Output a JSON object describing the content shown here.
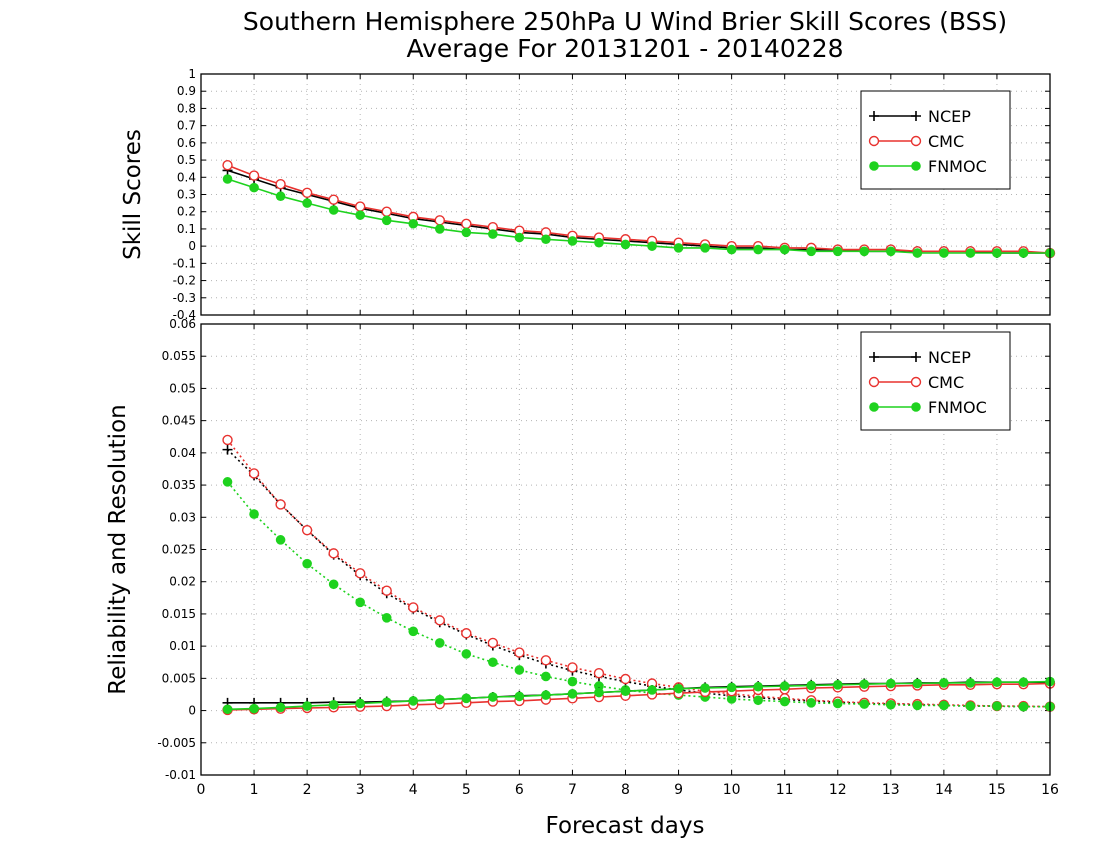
{
  "title": "Southern Hemisphere 250hPa U Wind Brier Skill Scores (BSS)",
  "subtitle": "Average For 20131201 - 20140228",
  "xlabel": "Forecast days",
  "xticks": [
    "0",
    "1",
    "2",
    "3",
    "4",
    "5",
    "6",
    "7",
    "8",
    "9",
    "10",
    "11",
    "12",
    "13",
    "14",
    "15",
    "16"
  ],
  "colors": {
    "NCEP": "#000000",
    "CMC": "#e8322f",
    "FNMOC": "#1ed21e",
    "grid": "#b4b4b4"
  },
  "chart_data": [
    {
      "type": "line",
      "ylabel": "Skill Scores",
      "xlim": [
        0,
        16
      ],
      "ylim": [
        -0.4,
        1
      ],
      "yticks": [
        "-0.4",
        "-0.3",
        "-0.2",
        "-0.1",
        "0",
        "0.1",
        "0.2",
        "0.3",
        "0.4",
        "0.5",
        "0.6",
        "0.7",
        "0.8",
        "0.9",
        "1"
      ],
      "grid": true,
      "legend_position": "top-right",
      "x": [
        0.5,
        1,
        1.5,
        2,
        2.5,
        3,
        3.5,
        4,
        4.5,
        5,
        5.5,
        6,
        6.5,
        7,
        7.5,
        8,
        8.5,
        9,
        9.5,
        10,
        10.5,
        11,
        11.5,
        12,
        12.5,
        13,
        13.5,
        14,
        14.5,
        15,
        15.5,
        16
      ],
      "series": [
        {
          "name": "NCEP",
          "marker": "plus",
          "values": [
            0.44,
            0.39,
            0.34,
            0.3,
            0.26,
            0.22,
            0.19,
            0.16,
            0.14,
            0.12,
            0.1,
            0.08,
            0.07,
            0.05,
            0.04,
            0.03,
            0.02,
            0.01,
            0.0,
            -0.01,
            -0.01,
            -0.02,
            -0.02,
            -0.02,
            -0.03,
            -0.03,
            -0.03,
            -0.03,
            -0.03,
            -0.04,
            -0.04,
            -0.04
          ]
        },
        {
          "name": "CMC",
          "marker": "open-circle",
          "values": [
            0.47,
            0.41,
            0.36,
            0.31,
            0.27,
            0.23,
            0.2,
            0.17,
            0.15,
            0.13,
            0.11,
            0.09,
            0.08,
            0.06,
            0.05,
            0.04,
            0.03,
            0.02,
            0.01,
            0.0,
            0.0,
            -0.01,
            -0.01,
            -0.02,
            -0.02,
            -0.02,
            -0.03,
            -0.03,
            -0.03,
            -0.03,
            -0.03,
            -0.04
          ]
        },
        {
          "name": "FNMOC",
          "marker": "filled-circle",
          "values": [
            0.39,
            0.34,
            0.29,
            0.25,
            0.21,
            0.18,
            0.15,
            0.13,
            0.1,
            0.08,
            0.07,
            0.05,
            0.04,
            0.03,
            0.02,
            0.01,
            0.0,
            -0.01,
            -0.01,
            -0.02,
            -0.02,
            -0.02,
            -0.03,
            -0.03,
            -0.03,
            -0.03,
            -0.04,
            -0.04,
            -0.04,
            -0.04,
            -0.04,
            -0.04
          ]
        }
      ]
    },
    {
      "type": "line",
      "ylabel": "Reliability and Resolution",
      "xlim": [
        0,
        16
      ],
      "ylim": [
        -0.01,
        0.06
      ],
      "yticks": [
        "-0.01",
        "-0.005",
        "0",
        "0.005",
        "0.01",
        "0.015",
        "0.02",
        "0.025",
        "0.03",
        "0.035",
        "0.04",
        "0.045",
        "0.05",
        "0.055",
        "0.06"
      ],
      "grid": true,
      "legend_position": "top-right",
      "x": [
        0.5,
        1,
        1.5,
        2,
        2.5,
        3,
        3.5,
        4,
        4.5,
        5,
        5.5,
        6,
        6.5,
        7,
        7.5,
        8,
        8.5,
        9,
        9.5,
        10,
        10.5,
        11,
        11.5,
        12,
        12.5,
        13,
        13.5,
        14,
        14.5,
        15,
        15.5,
        16
      ],
      "series": [
        {
          "name": "NCEP",
          "marker": "plus",
          "line": "dotted",
          "role": "reliability",
          "values": [
            0.0405,
            0.0365,
            0.032,
            0.028,
            0.0242,
            0.021,
            0.0182,
            0.0158,
            0.0137,
            0.0118,
            0.0101,
            0.0086,
            0.0073,
            0.0062,
            0.0053,
            0.0045,
            0.0038,
            0.0032,
            0.0027,
            0.0023,
            0.002,
            0.0017,
            0.0015,
            0.0013,
            0.0011,
            0.001,
            0.0009,
            0.0008,
            0.0007,
            0.0007,
            0.0006,
            0.0006
          ]
        },
        {
          "name": "CMC",
          "marker": "open-circle",
          "line": "dotted",
          "role": "reliability",
          "values": [
            0.042,
            0.0368,
            0.032,
            0.028,
            0.0244,
            0.0213,
            0.0186,
            0.016,
            0.014,
            0.012,
            0.0105,
            0.009,
            0.0078,
            0.0067,
            0.0058,
            0.0049,
            0.0042,
            0.0036,
            0.003,
            0.0026,
            0.0022,
            0.0019,
            0.0016,
            0.0014,
            0.0012,
            0.0011,
            0.001,
            0.0009,
            0.0008,
            0.0007,
            0.0007,
            0.0006
          ]
        },
        {
          "name": "FNMOC",
          "marker": "filled-circle",
          "line": "dotted",
          "role": "reliability",
          "values": [
            0.0355,
            0.0305,
            0.0265,
            0.0228,
            0.0196,
            0.0168,
            0.0144,
            0.0123,
            0.0105,
            0.0088,
            0.0075,
            0.0063,
            0.0053,
            0.0045,
            0.0038,
            0.0032,
            0.0027,
            0.0024,
            0.0021,
            0.0018,
            0.0016,
            0.0014,
            0.0012,
            0.0011,
            0.001,
            0.0009,
            0.0008,
            0.0008,
            0.0007,
            0.0007,
            0.0006,
            0.0006
          ]
        },
        {
          "name": "NCEP",
          "marker": "plus",
          "line": "solid",
          "role": "resolution",
          "values": [
            0.0012,
            0.0012,
            0.0012,
            0.0012,
            0.0013,
            0.0013,
            0.0014,
            0.0015,
            0.0017,
            0.0019,
            0.0021,
            0.0023,
            0.0024,
            0.0026,
            0.0028,
            0.003,
            0.0032,
            0.0034,
            0.0036,
            0.0037,
            0.0038,
            0.0039,
            0.004,
            0.0041,
            0.0042,
            0.0042,
            0.0043,
            0.0043,
            0.0044,
            0.0044,
            0.0044,
            0.0044
          ]
        },
        {
          "name": "CMC",
          "marker": "open-circle",
          "line": "solid",
          "role": "resolution",
          "values": [
            0.0001,
            0.0002,
            0.0003,
            0.0004,
            0.0005,
            0.0006,
            0.0007,
            0.0009,
            0.001,
            0.0012,
            0.0014,
            0.0015,
            0.0017,
            0.0019,
            0.0021,
            0.0023,
            0.0025,
            0.0027,
            0.0029,
            0.003,
            0.0032,
            0.0033,
            0.0035,
            0.0036,
            0.0037,
            0.0038,
            0.0039,
            0.004,
            0.004,
            0.0041,
            0.0041,
            0.0042
          ]
        },
        {
          "name": "FNMOC",
          "marker": "filled-circle",
          "line": "solid",
          "role": "resolution",
          "values": [
            0.0002,
            0.0003,
            0.0005,
            0.0007,
            0.0009,
            0.0011,
            0.0013,
            0.0015,
            0.0017,
            0.0019,
            0.0021,
            0.0022,
            0.0024,
            0.0026,
            0.0028,
            0.003,
            0.0032,
            0.0034,
            0.0035,
            0.0036,
            0.0037,
            0.0038,
            0.0039,
            0.004,
            0.0041,
            0.0042,
            0.0042,
            0.0043,
            0.0043,
            0.0044,
            0.0044,
            0.0045
          ]
        }
      ]
    }
  ]
}
